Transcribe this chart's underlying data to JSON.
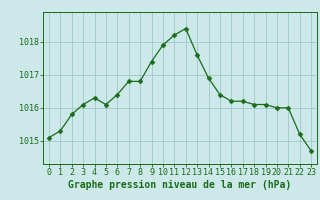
{
  "hours": [
    0,
    1,
    2,
    3,
    4,
    5,
    6,
    7,
    8,
    9,
    10,
    11,
    12,
    13,
    14,
    15,
    16,
    17,
    18,
    19,
    20,
    21,
    22,
    23
  ],
  "pressure": [
    1015.1,
    1015.3,
    1015.8,
    1016.1,
    1016.3,
    1016.1,
    1016.4,
    1016.8,
    1016.8,
    1017.4,
    1017.9,
    1018.2,
    1018.4,
    1017.6,
    1016.9,
    1016.4,
    1016.2,
    1016.2,
    1016.1,
    1016.1,
    1016.0,
    1016.0,
    1015.2,
    1014.7
  ],
  "line_color": "#1a6b1a",
  "marker": "D",
  "marker_size": 2.5,
  "bg_color": "#cce8e8",
  "grid_color": "#9fc8c8",
  "axis_color": "#1a6b1a",
  "xlabel": "Graphe pression niveau de la mer (hPa)",
  "xlabel_fontsize": 7,
  "tick_fontsize": 6,
  "yticks": [
    1015,
    1016,
    1017,
    1018
  ],
  "ylim": [
    1014.3,
    1018.9
  ],
  "xlim": [
    -0.5,
    23.5
  ]
}
